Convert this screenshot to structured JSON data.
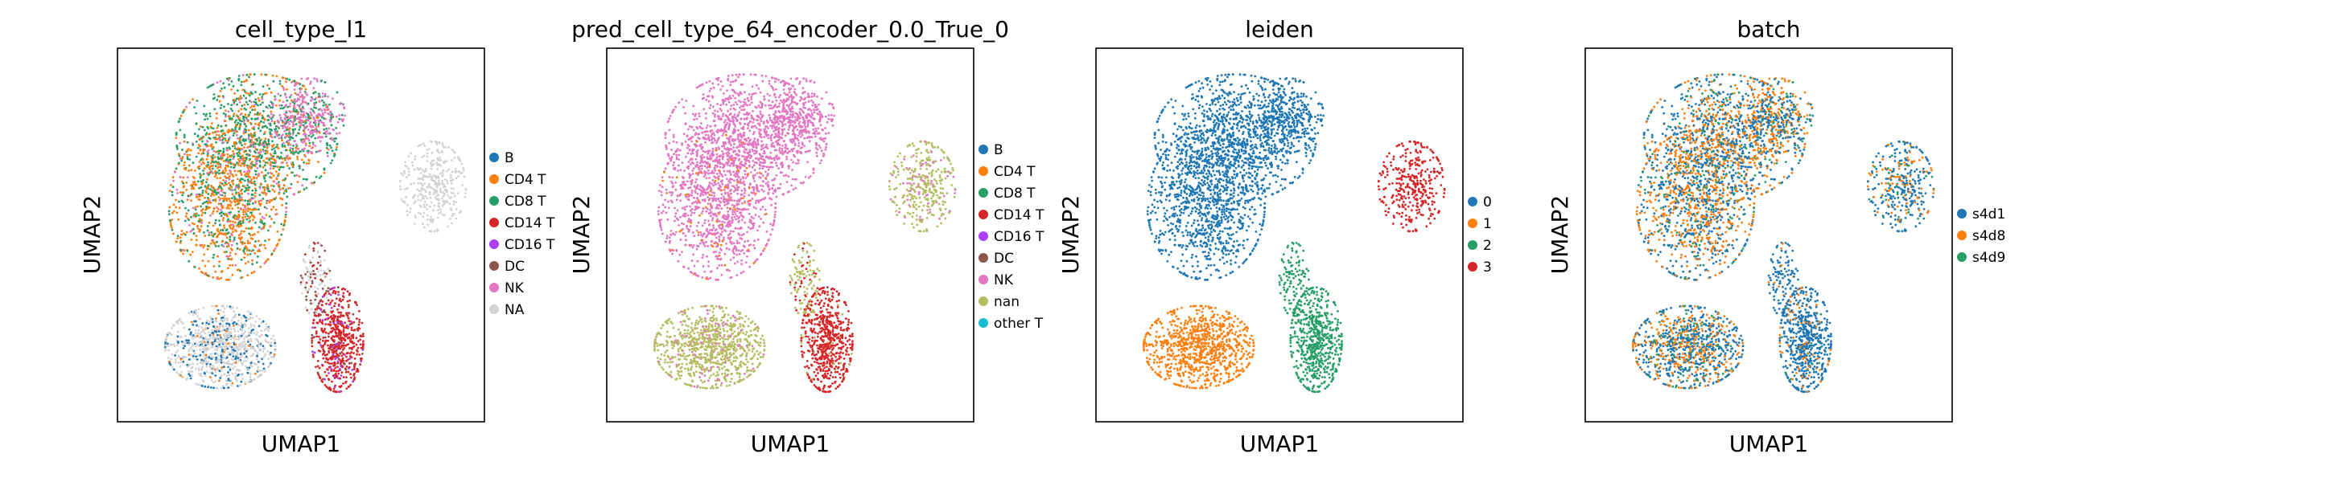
{
  "chart_data": [
    {
      "type": "scatter",
      "title": "cell_type_l1",
      "xlabel": "UMAP1",
      "ylabel": "UMAP2",
      "legend": {
        "placement": "right",
        "entries": [
          {
            "name": "B",
            "color": "#1f77b4"
          },
          {
            "name": "CD4 T",
            "color": "#ff7f0e"
          },
          {
            "name": "CD8 T",
            "color": "#279e68"
          },
          {
            "name": "CD14 T",
            "color": "#d62728"
          },
          {
            "name": "CD16 T",
            "color": "#aa40fc"
          },
          {
            "name": "DC",
            "color": "#8c564b"
          },
          {
            "name": "NK",
            "color": "#e377c2"
          },
          {
            "name": "NA",
            "color": "#d3d3d3"
          }
        ]
      },
      "clusters": [
        {
          "cx": 0.38,
          "cy": 0.76,
          "rx": 0.22,
          "ry": 0.17,
          "n": 1100,
          "mix": {
            "CD8 T": 0.55,
            "NK": 0.15,
            "CD4 T": 0.3
          }
        },
        {
          "cx": 0.3,
          "cy": 0.58,
          "rx": 0.16,
          "ry": 0.2,
          "n": 1000,
          "mix": {
            "CD4 T": 0.6,
            "CD8 T": 0.3,
            "NK": 0.1
          }
        },
        {
          "cx": 0.52,
          "cy": 0.82,
          "rx": 0.1,
          "ry": 0.1,
          "n": 300,
          "mix": {
            "NK": 0.8,
            "CD8 T": 0.2
          }
        },
        {
          "cx": 0.28,
          "cy": 0.2,
          "rx": 0.15,
          "ry": 0.11,
          "n": 900,
          "mix": {
            "NA": 0.7,
            "B": 0.25,
            "CD4 T": 0.05
          }
        },
        {
          "cx": 0.6,
          "cy": 0.22,
          "rx": 0.07,
          "ry": 0.14,
          "n": 600,
          "mix": {
            "CD14 T": 0.85,
            "CD16 T": 0.1,
            "DC": 0.05
          }
        },
        {
          "cx": 0.86,
          "cy": 0.63,
          "rx": 0.09,
          "ry": 0.12,
          "n": 350,
          "mix": {
            "NA": 1.0
          }
        },
        {
          "cx": 0.54,
          "cy": 0.38,
          "rx": 0.04,
          "ry": 0.1,
          "n": 120,
          "mix": {
            "NA": 0.5,
            "DC": 0.3,
            "CD14 T": 0.2
          }
        }
      ]
    },
    {
      "type": "scatter",
      "title": "pred_cell_type_64_encoder_0.0_True_0",
      "xlabel": "UMAP1",
      "ylabel": "UMAP2",
      "legend": {
        "placement": "right",
        "entries": [
          {
            "name": "B",
            "color": "#1f77b4"
          },
          {
            "name": "CD4 T",
            "color": "#ff7f0e"
          },
          {
            "name": "CD8 T",
            "color": "#279e68"
          },
          {
            "name": "CD14 T",
            "color": "#d62728"
          },
          {
            "name": "CD16 T",
            "color": "#aa40fc"
          },
          {
            "name": "DC",
            "color": "#8c564b"
          },
          {
            "name": "NK",
            "color": "#e377c2"
          },
          {
            "name": "nan",
            "color": "#b5bd61"
          },
          {
            "name": "other T",
            "color": "#17becf"
          }
        ]
      },
      "clusters": [
        {
          "cx": 0.38,
          "cy": 0.76,
          "rx": 0.22,
          "ry": 0.17,
          "n": 1100,
          "mix": {
            "NK": 1.0
          }
        },
        {
          "cx": 0.3,
          "cy": 0.58,
          "rx": 0.16,
          "ry": 0.2,
          "n": 1000,
          "mix": {
            "NK": 0.92,
            "CD4 T": 0.08
          }
        },
        {
          "cx": 0.52,
          "cy": 0.82,
          "rx": 0.1,
          "ry": 0.1,
          "n": 300,
          "mix": {
            "NK": 1.0
          }
        },
        {
          "cx": 0.28,
          "cy": 0.2,
          "rx": 0.15,
          "ry": 0.11,
          "n": 900,
          "mix": {
            "nan": 0.9,
            "NK": 0.1
          }
        },
        {
          "cx": 0.6,
          "cy": 0.22,
          "rx": 0.07,
          "ry": 0.14,
          "n": 600,
          "mix": {
            "CD14 T": 0.95,
            "nan": 0.05
          }
        },
        {
          "cx": 0.86,
          "cy": 0.63,
          "rx": 0.09,
          "ry": 0.12,
          "n": 350,
          "mix": {
            "nan": 0.85,
            "NK": 0.15
          }
        },
        {
          "cx": 0.54,
          "cy": 0.38,
          "rx": 0.04,
          "ry": 0.1,
          "n": 120,
          "mix": {
            "nan": 0.7,
            "CD14 T": 0.3
          }
        }
      ]
    },
    {
      "type": "scatter",
      "title": "leiden",
      "xlabel": "UMAP1",
      "ylabel": "UMAP2",
      "legend": {
        "placement": "right",
        "entries": [
          {
            "name": "0",
            "color": "#1f77b4"
          },
          {
            "name": "1",
            "color": "#ff7f0e"
          },
          {
            "name": "2",
            "color": "#279e68"
          },
          {
            "name": "3",
            "color": "#d62728"
          }
        ]
      },
      "clusters": [
        {
          "cx": 0.38,
          "cy": 0.76,
          "rx": 0.22,
          "ry": 0.17,
          "n": 1100,
          "mix": {
            "0": 1.0
          }
        },
        {
          "cx": 0.3,
          "cy": 0.58,
          "rx": 0.16,
          "ry": 0.2,
          "n": 1000,
          "mix": {
            "0": 1.0
          }
        },
        {
          "cx": 0.52,
          "cy": 0.82,
          "rx": 0.1,
          "ry": 0.1,
          "n": 300,
          "mix": {
            "0": 1.0
          }
        },
        {
          "cx": 0.28,
          "cy": 0.2,
          "rx": 0.15,
          "ry": 0.11,
          "n": 900,
          "mix": {
            "1": 1.0
          }
        },
        {
          "cx": 0.6,
          "cy": 0.22,
          "rx": 0.07,
          "ry": 0.14,
          "n": 600,
          "mix": {
            "2": 1.0
          }
        },
        {
          "cx": 0.86,
          "cy": 0.63,
          "rx": 0.09,
          "ry": 0.12,
          "n": 350,
          "mix": {
            "3": 1.0
          }
        },
        {
          "cx": 0.54,
          "cy": 0.38,
          "rx": 0.04,
          "ry": 0.1,
          "n": 120,
          "mix": {
            "2": 1.0
          }
        }
      ]
    },
    {
      "type": "scatter",
      "title": "batch",
      "xlabel": "UMAP1",
      "ylabel": "UMAP2",
      "legend": {
        "placement": "right",
        "entries": [
          {
            "name": "s4d1",
            "color": "#1f77b4"
          },
          {
            "name": "s4d8",
            "color": "#ff7f0e"
          },
          {
            "name": "s4d9",
            "color": "#279e68"
          }
        ]
      },
      "clusters": [
        {
          "cx": 0.38,
          "cy": 0.76,
          "rx": 0.22,
          "ry": 0.17,
          "n": 1100,
          "mix": {
            "s4d1": 0.45,
            "s4d8": 0.45,
            "s4d9": 0.1
          }
        },
        {
          "cx": 0.3,
          "cy": 0.58,
          "rx": 0.16,
          "ry": 0.2,
          "n": 1000,
          "mix": {
            "s4d1": 0.45,
            "s4d8": 0.45,
            "s4d9": 0.1
          }
        },
        {
          "cx": 0.52,
          "cy": 0.82,
          "rx": 0.1,
          "ry": 0.1,
          "n": 300,
          "mix": {
            "s4d1": 0.5,
            "s4d8": 0.4,
            "s4d9": 0.1
          }
        },
        {
          "cx": 0.28,
          "cy": 0.2,
          "rx": 0.15,
          "ry": 0.11,
          "n": 900,
          "mix": {
            "s4d1": 0.5,
            "s4d8": 0.4,
            "s4d9": 0.1
          }
        },
        {
          "cx": 0.6,
          "cy": 0.22,
          "rx": 0.07,
          "ry": 0.14,
          "n": 600,
          "mix": {
            "s4d1": 0.85,
            "s4d8": 0.12,
            "s4d9": 0.03
          }
        },
        {
          "cx": 0.86,
          "cy": 0.63,
          "rx": 0.09,
          "ry": 0.12,
          "n": 350,
          "mix": {
            "s4d1": 0.7,
            "s4d8": 0.25,
            "s4d9": 0.05
          }
        },
        {
          "cx": 0.54,
          "cy": 0.38,
          "rx": 0.04,
          "ry": 0.1,
          "n": 120,
          "mix": {
            "s4d1": 0.9,
            "s4d8": 0.1
          }
        }
      ]
    }
  ]
}
